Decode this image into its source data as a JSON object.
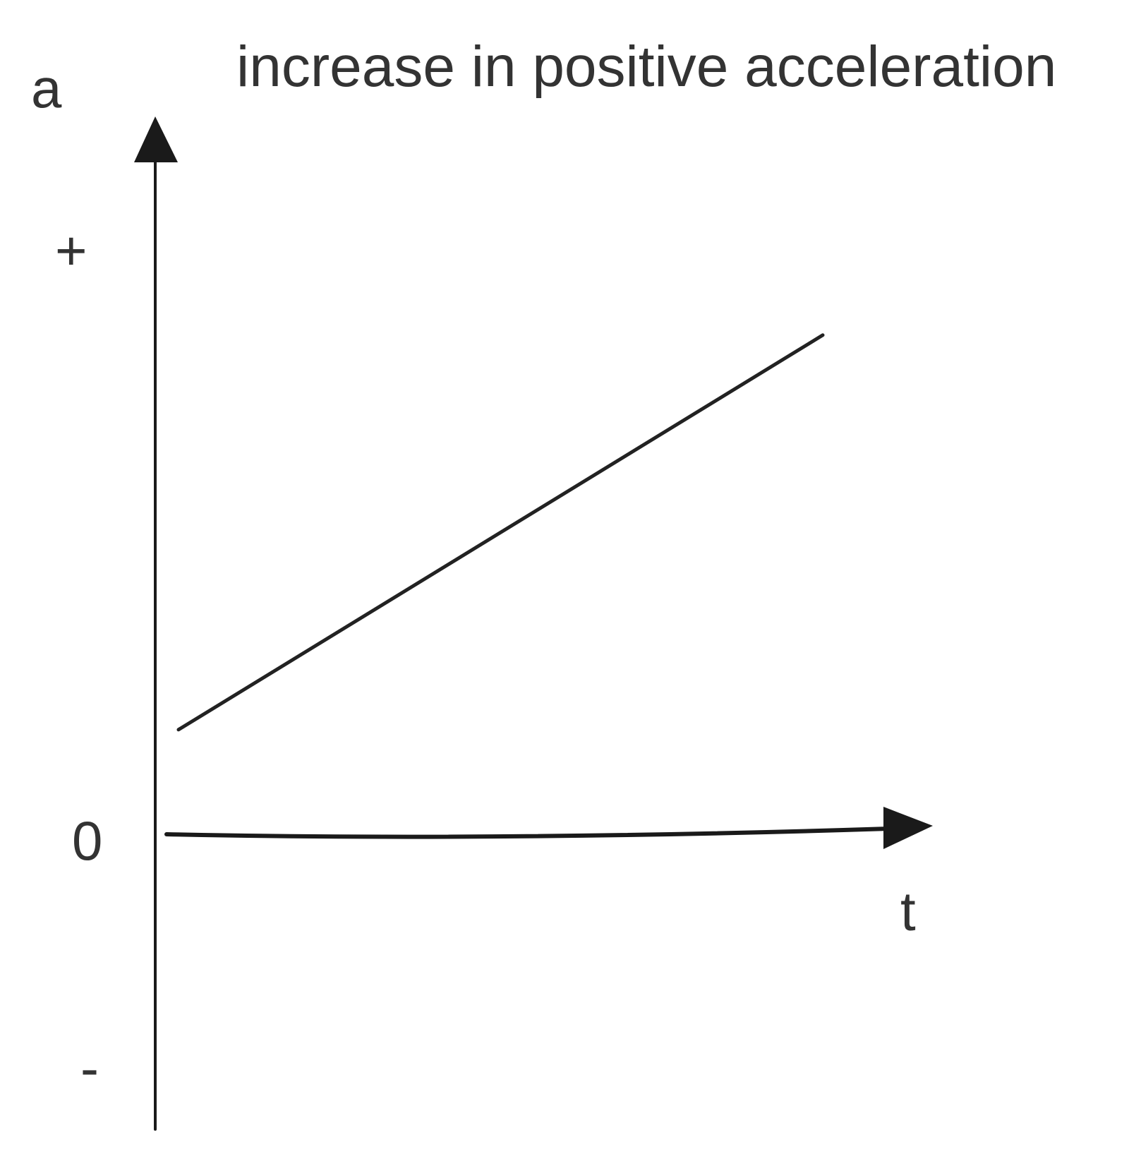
{
  "chart_data": {
    "type": "line",
    "title": "increase in positive acceleration",
    "xlabel": "t",
    "ylabel": "a",
    "ytick_labels": {
      "positive": "+",
      "zero": "0",
      "negative": "-"
    },
    "ylim": [
      -1,
      1
    ],
    "xlim": [
      0,
      1
    ],
    "series": [
      {
        "x": [
          0.03,
          0.86
        ],
        "y": [
          0.17,
          0.82
        ]
      }
    ],
    "grid": false,
    "legend": "none",
    "colors": {
      "line": "#222222",
      "axes": "#1a1a1a",
      "text": "#333333"
    }
  }
}
